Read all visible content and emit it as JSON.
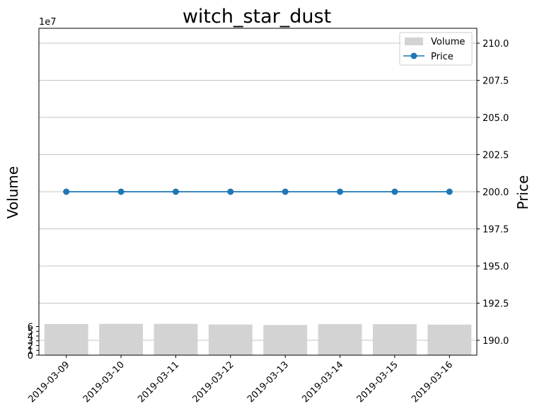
{
  "chart_data": {
    "type": "bar",
    "title": "witch_star_dust",
    "categories": [
      "2019-03-09",
      "2019-03-10",
      "2019-03-11",
      "2019-03-12",
      "2019-03-13",
      "2019-03-14",
      "2019-03-15",
      "2019-03-16"
    ],
    "series": [
      {
        "name": "Volume",
        "type": "bar",
        "axis": "left",
        "color": "#d3d3d3",
        "values": [
          65100000,
          65500000,
          65500000,
          64200000,
          63200000,
          65000000,
          64800000,
          64000000
        ]
      },
      {
        "name": "Price",
        "type": "line",
        "axis": "right",
        "color": "#1f77b4",
        "marker": "circle",
        "values": [
          200.0,
          200.0,
          200.0,
          200.0,
          200.0,
          200.0,
          200.0,
          200.0
        ]
      }
    ],
    "ylabel_left": "Volume",
    "ylabel_right": "Price",
    "left_axis_multiplier": "1e7",
    "ylim_left": [
      0,
      68.4
    ],
    "yticks_left": [
      0,
      1,
      2,
      3,
      4,
      5,
      6
    ],
    "ylim_right": [
      189.0,
      211.0
    ],
    "yticks_right": [
      "190.0",
      "192.5",
      "195.0",
      "197.5",
      "200.0",
      "202.5",
      "205.0",
      "207.5",
      "210.0"
    ],
    "grid": "right-axis horizontal",
    "legend_position": "top-right"
  }
}
